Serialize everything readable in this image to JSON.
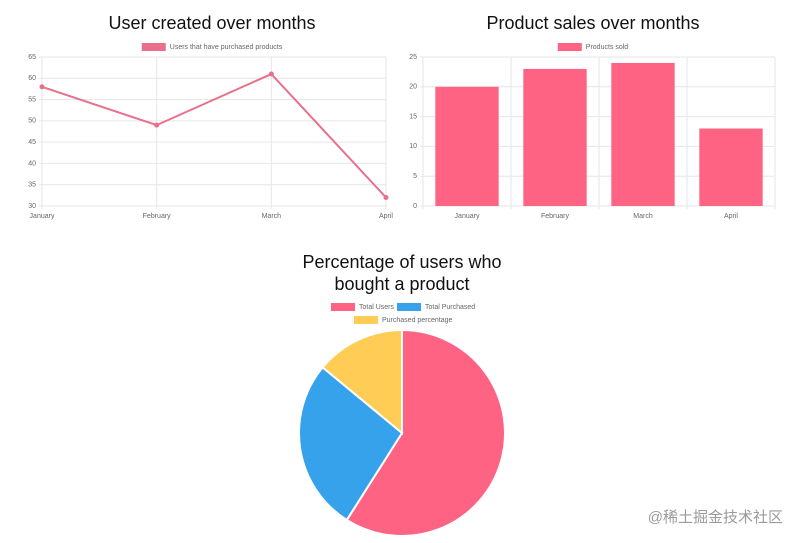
{
  "chart_data": [
    {
      "type": "line",
      "title": "User created over months",
      "categories": [
        "January",
        "February",
        "March",
        "April"
      ],
      "series": [
        {
          "name": "Users that have purchased products",
          "color": "#e8708a",
          "values": [
            58,
            49,
            61,
            32
          ]
        }
      ],
      "ylim": [
        30,
        65
      ],
      "yticks": [
        30,
        35,
        40,
        45,
        50,
        55,
        60,
        65
      ],
      "grid": true
    },
    {
      "type": "bar",
      "title": "Product sales over months",
      "categories": [
        "January",
        "February",
        "March",
        "April"
      ],
      "series": [
        {
          "name": "Products sold",
          "color": "#ff6384",
          "values": [
            20,
            23,
            24,
            13
          ]
        }
      ],
      "ylim": [
        0,
        25
      ],
      "yticks": [
        0,
        5,
        10,
        15,
        20,
        25
      ],
      "grid": true
    },
    {
      "type": "pie",
      "title": "Percentage of users who bought a product",
      "categories": [
        "Total Users",
        "Total Purchased",
        "Purchased percentage"
      ],
      "values": [
        59,
        27,
        14
      ],
      "colors": [
        "#ff6384",
        "#36a2eb",
        "#ffcd56"
      ]
    }
  ],
  "watermark": "@稀土掘金技术社区"
}
